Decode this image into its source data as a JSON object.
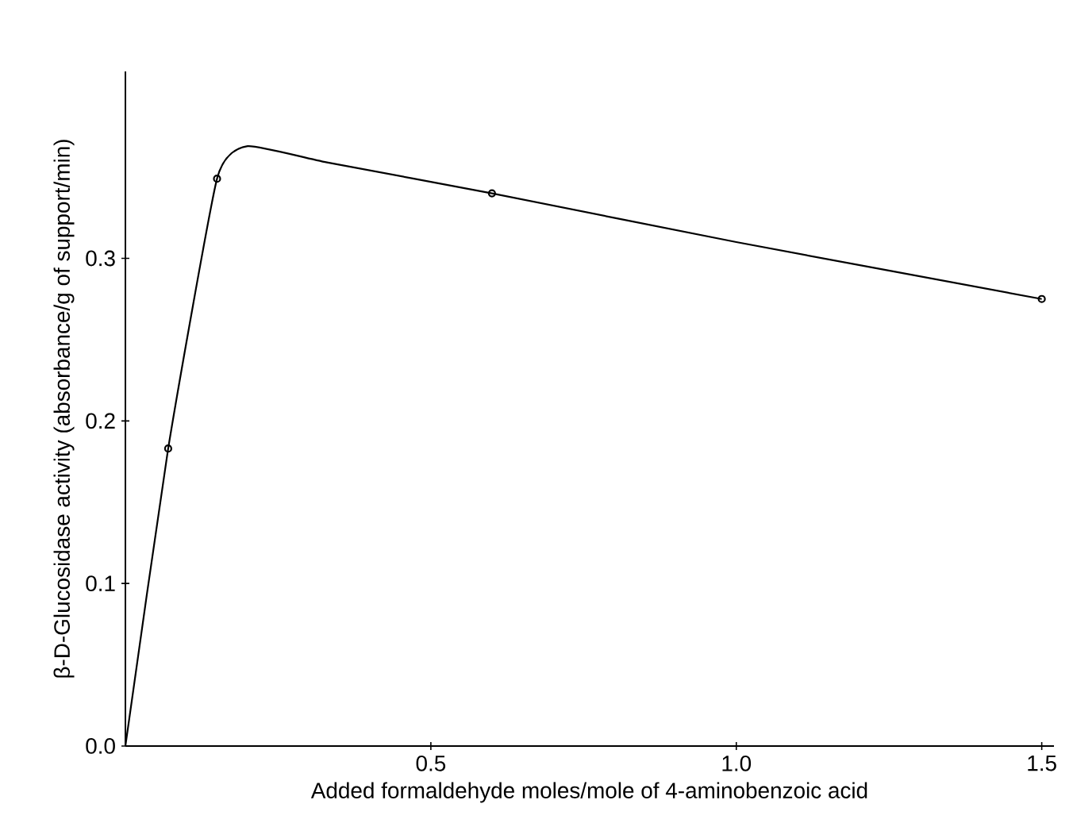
{
  "chart_data": {
    "type": "line",
    "xlabel": "Added formaldehyde moles/mole of 4-aminobenzoic acid",
    "ylabel": "β-D-Glucosidase activity (absorbance/g of support/min)",
    "series": [
      {
        "marker": "none",
        "color": "#000000",
        "x": [
          0,
          0.07,
          0.15,
          0.2,
          0.33,
          0.6,
          1.0,
          1.5
        ],
        "values": [
          0,
          0.183,
          0.349,
          0.369,
          0.359,
          0.34,
          0.31,
          0.275
        ]
      },
      {
        "type": "scatter",
        "marker": "circle",
        "color": "#000000",
        "x": [
          0.07,
          0.15,
          0.6,
          1.5
        ],
        "values": [
          0.183,
          0.349,
          0.34,
          0.275
        ]
      }
    ],
    "xlim": [
      0,
      1.52
    ],
    "ylim": [
      0,
      0.415
    ],
    "xticks": [
      0.5,
      {
        "value": 1.0,
        "label": "1.0"
      },
      1.5
    ],
    "yticks": [
      {
        "value": 0,
        "label": "0.0"
      },
      0.1,
      0.2,
      0.3
    ]
  }
}
